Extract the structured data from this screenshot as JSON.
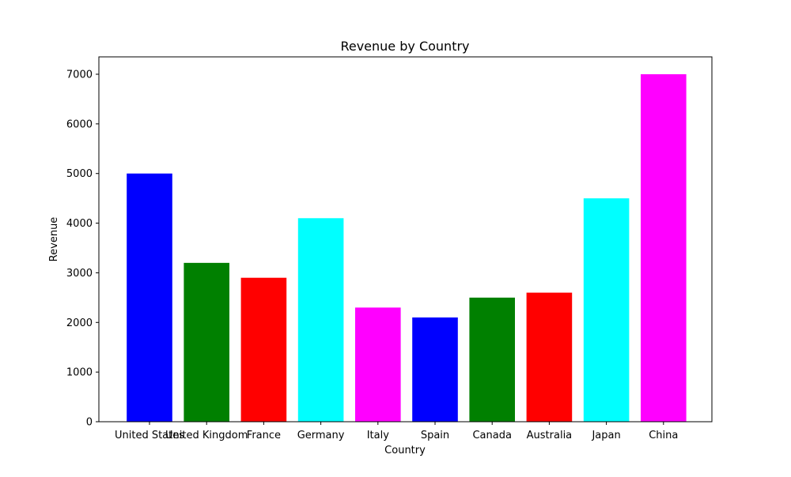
{
  "chart_data": {
    "type": "bar",
    "title": "Revenue by Country",
    "xlabel": "Country",
    "ylabel": "Revenue",
    "categories": [
      "United States",
      "United Kingdom",
      "France",
      "Germany",
      "Italy",
      "Spain",
      "Canada",
      "Australia",
      "Japan",
      "China"
    ],
    "values": [
      5000,
      3200,
      2900,
      4100,
      2300,
      2100,
      2500,
      2600,
      4500,
      7000
    ],
    "colors": [
      "#0000ff",
      "#008000",
      "#ff0000",
      "#00ffff",
      "#ff00ff",
      "#0000ff",
      "#008000",
      "#ff0000",
      "#00ffff",
      "#ff00ff"
    ],
    "ylim": [
      0,
      7350
    ],
    "yticks": [
      0,
      1000,
      2000,
      3000,
      4000,
      5000,
      6000,
      7000
    ],
    "grid": false,
    "legend": "none"
  }
}
